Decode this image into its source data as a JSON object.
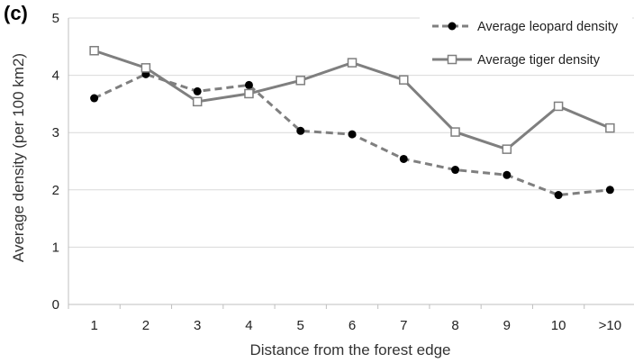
{
  "panel_label": "(c)",
  "chart_data": {
    "type": "line",
    "xlabel": "Distance from the forest edge",
    "ylabel": "Average density (per 100 km2)",
    "categories": [
      "1",
      "2",
      "3",
      "4",
      "5",
      "6",
      "7",
      "8",
      "9",
      "10",
      ">10"
    ],
    "ylim": [
      0,
      5
    ],
    "yticks": [
      0,
      1,
      2,
      3,
      4,
      5
    ],
    "grid": "horizontal",
    "legend_position": "top-right",
    "series": [
      {
        "name": "Average leopard density",
        "style": "dashed",
        "marker": "filled-circle",
        "color": "#7f7f7f",
        "marker_color": "#000000",
        "values": [
          3.6,
          4.02,
          3.72,
          3.83,
          3.03,
          2.97,
          2.54,
          2.35,
          2.26,
          1.91,
          2.0
        ]
      },
      {
        "name": "Average tiger density",
        "style": "solid",
        "marker": "open-square",
        "color": "#7f7f7f",
        "marker_color": "#7f7f7f",
        "values": [
          4.43,
          4.13,
          3.54,
          3.68,
          3.91,
          4.22,
          3.92,
          3.01,
          2.71,
          3.46,
          3.08
        ]
      }
    ]
  }
}
